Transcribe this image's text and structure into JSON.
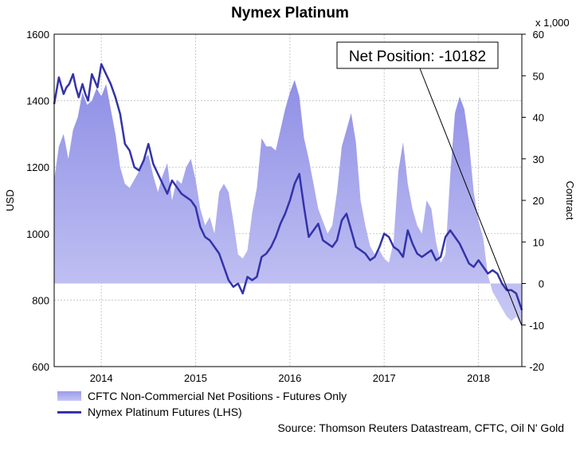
{
  "chart_data": {
    "type": "area+line",
    "title": "Nymex Platinum",
    "left_axis": {
      "label": "USD",
      "range": [
        600,
        1600
      ],
      "ticks": [
        600,
        800,
        1000,
        1200,
        1400,
        1600
      ]
    },
    "right_axis": {
      "label": "Contract",
      "unit_label": "x 1,000",
      "range": [
        -20,
        60
      ],
      "ticks": [
        -20,
        -10,
        0,
        10,
        20,
        30,
        40,
        50,
        60
      ]
    },
    "x_axis": {
      "ticks": [
        "2014",
        "2015",
        "2016",
        "2017",
        "2018"
      ],
      "tick_positions": [
        2014.0,
        2015.0,
        2016.0,
        2017.0,
        2018.0
      ],
      "range": [
        2013.5,
        2018.46
      ]
    },
    "grid": true,
    "annotation": {
      "text": "Net Position: -10182",
      "x": 2018.46,
      "value": -10.182
    },
    "source": "Source: Thomson Reuters Datastream, CFTC, Oil N' Gold",
    "series": [
      {
        "name": "CFTC Non-Commercial Net Positions - Futures Only",
        "axis": "right",
        "kind": "area",
        "color": "#9999e8",
        "x": [
          2013.5,
          2013.55,
          2013.6,
          2013.65,
          2013.7,
          2013.75,
          2013.8,
          2013.85,
          2013.9,
          2013.95,
          2014.0,
          2014.05,
          2014.1,
          2014.15,
          2014.2,
          2014.25,
          2014.3,
          2014.35,
          2014.4,
          2014.45,
          2014.5,
          2014.55,
          2014.6,
          2014.65,
          2014.7,
          2014.75,
          2014.8,
          2014.85,
          2014.9,
          2014.95,
          2015.0,
          2015.05,
          2015.1,
          2015.15,
          2015.2,
          2015.25,
          2015.3,
          2015.35,
          2015.4,
          2015.45,
          2015.5,
          2015.55,
          2015.6,
          2015.65,
          2015.7,
          2015.75,
          2015.8,
          2015.85,
          2015.9,
          2015.95,
          2016.0,
          2016.05,
          2016.1,
          2016.15,
          2016.2,
          2016.25,
          2016.3,
          2016.35,
          2016.4,
          2016.45,
          2016.5,
          2016.55,
          2016.6,
          2016.65,
          2016.7,
          2016.75,
          2016.8,
          2016.85,
          2016.9,
          2016.95,
          2017.0,
          2017.05,
          2017.1,
          2017.15,
          2017.2,
          2017.25,
          2017.3,
          2017.35,
          2017.4,
          2017.45,
          2017.5,
          2017.55,
          2017.6,
          2017.65,
          2017.7,
          2017.75,
          2017.8,
          2017.85,
          2017.9,
          2017.95,
          2018.0,
          2018.05,
          2018.1,
          2018.15,
          2018.2,
          2018.25,
          2018.3,
          2018.35,
          2018.4,
          2018.46
        ],
        "values": [
          25,
          33,
          36,
          30,
          37,
          40,
          46,
          43,
          44,
          47,
          45,
          48,
          42,
          36,
          28,
          24,
          23,
          25,
          27,
          30,
          31,
          26,
          22,
          26,
          29,
          20,
          25,
          24,
          28,
          30,
          25,
          18,
          14,
          16,
          12,
          22,
          24,
          22,
          15,
          7,
          6,
          8,
          17,
          23,
          35,
          33,
          33,
          32,
          37,
          42,
          46,
          49,
          45,
          35,
          30,
          24,
          18,
          15,
          12,
          14,
          22,
          33,
          37,
          41,
          34,
          20,
          14,
          9,
          7,
          8,
          6,
          5,
          10,
          27,
          34,
          24,
          18,
          14,
          12,
          20,
          18,
          10,
          5,
          7,
          26,
          41,
          45,
          42,
          34,
          22,
          15,
          11,
          2,
          -2,
          -4,
          -6,
          -8,
          -9,
          -8,
          -10.182
        ]
      },
      {
        "name": "Nymex Platinum Futures (LHS)",
        "axis": "left",
        "kind": "line",
        "color": "#3333aa",
        "x": [
          2013.5,
          2013.55,
          2013.6,
          2013.63,
          2013.66,
          2013.7,
          2013.73,
          2013.76,
          2013.8,
          2013.83,
          2013.86,
          2013.9,
          2013.93,
          2013.96,
          2014.0,
          2014.05,
          2014.1,
          2014.15,
          2014.2,
          2014.25,
          2014.3,
          2014.35,
          2014.4,
          2014.45,
          2014.5,
          2014.55,
          2014.6,
          2014.65,
          2014.7,
          2014.75,
          2014.8,
          2014.85,
          2014.9,
          2014.95,
          2015.0,
          2015.05,
          2015.1,
          2015.15,
          2015.2,
          2015.25,
          2015.3,
          2015.35,
          2015.4,
          2015.45,
          2015.5,
          2015.55,
          2015.6,
          2015.65,
          2015.7,
          2015.75,
          2015.8,
          2015.85,
          2015.9,
          2015.95,
          2016.0,
          2016.05,
          2016.1,
          2016.15,
          2016.2,
          2016.25,
          2016.3,
          2016.35,
          2016.4,
          2016.45,
          2016.5,
          2016.55,
          2016.6,
          2016.65,
          2016.7,
          2016.75,
          2016.8,
          2016.85,
          2016.9,
          2016.95,
          2017.0,
          2017.05,
          2017.1,
          2017.15,
          2017.2,
          2017.25,
          2017.3,
          2017.35,
          2017.4,
          2017.45,
          2017.5,
          2017.55,
          2017.6,
          2017.65,
          2017.7,
          2017.75,
          2017.8,
          2017.85,
          2017.9,
          2017.95,
          2018.0,
          2018.05,
          2018.1,
          2018.15,
          2018.2,
          2018.25,
          2018.3,
          2018.35,
          2018.4,
          2018.46
        ],
        "values": [
          1390,
          1470,
          1420,
          1440,
          1450,
          1480,
          1440,
          1410,
          1450,
          1420,
          1400,
          1480,
          1460,
          1440,
          1510,
          1480,
          1450,
          1410,
          1360,
          1270,
          1250,
          1200,
          1190,
          1220,
          1270,
          1210,
          1180,
          1150,
          1120,
          1160,
          1140,
          1120,
          1110,
          1100,
          1080,
          1020,
          990,
          980,
          960,
          940,
          900,
          860,
          840,
          850,
          820,
          870,
          860,
          870,
          930,
          940,
          960,
          990,
          1030,
          1060,
          1100,
          1150,
          1180,
          1080,
          990,
          1010,
          1030,
          980,
          970,
          960,
          980,
          1040,
          1060,
          1010,
          960,
          950,
          940,
          920,
          930,
          960,
          1000,
          990,
          960,
          950,
          930,
          1010,
          970,
          940,
          930,
          940,
          950,
          920,
          930,
          990,
          1010,
          990,
          970,
          940,
          910,
          900,
          920,
          900,
          880,
          890,
          880,
          850,
          830,
          830,
          820,
          770
        ]
      }
    ]
  }
}
